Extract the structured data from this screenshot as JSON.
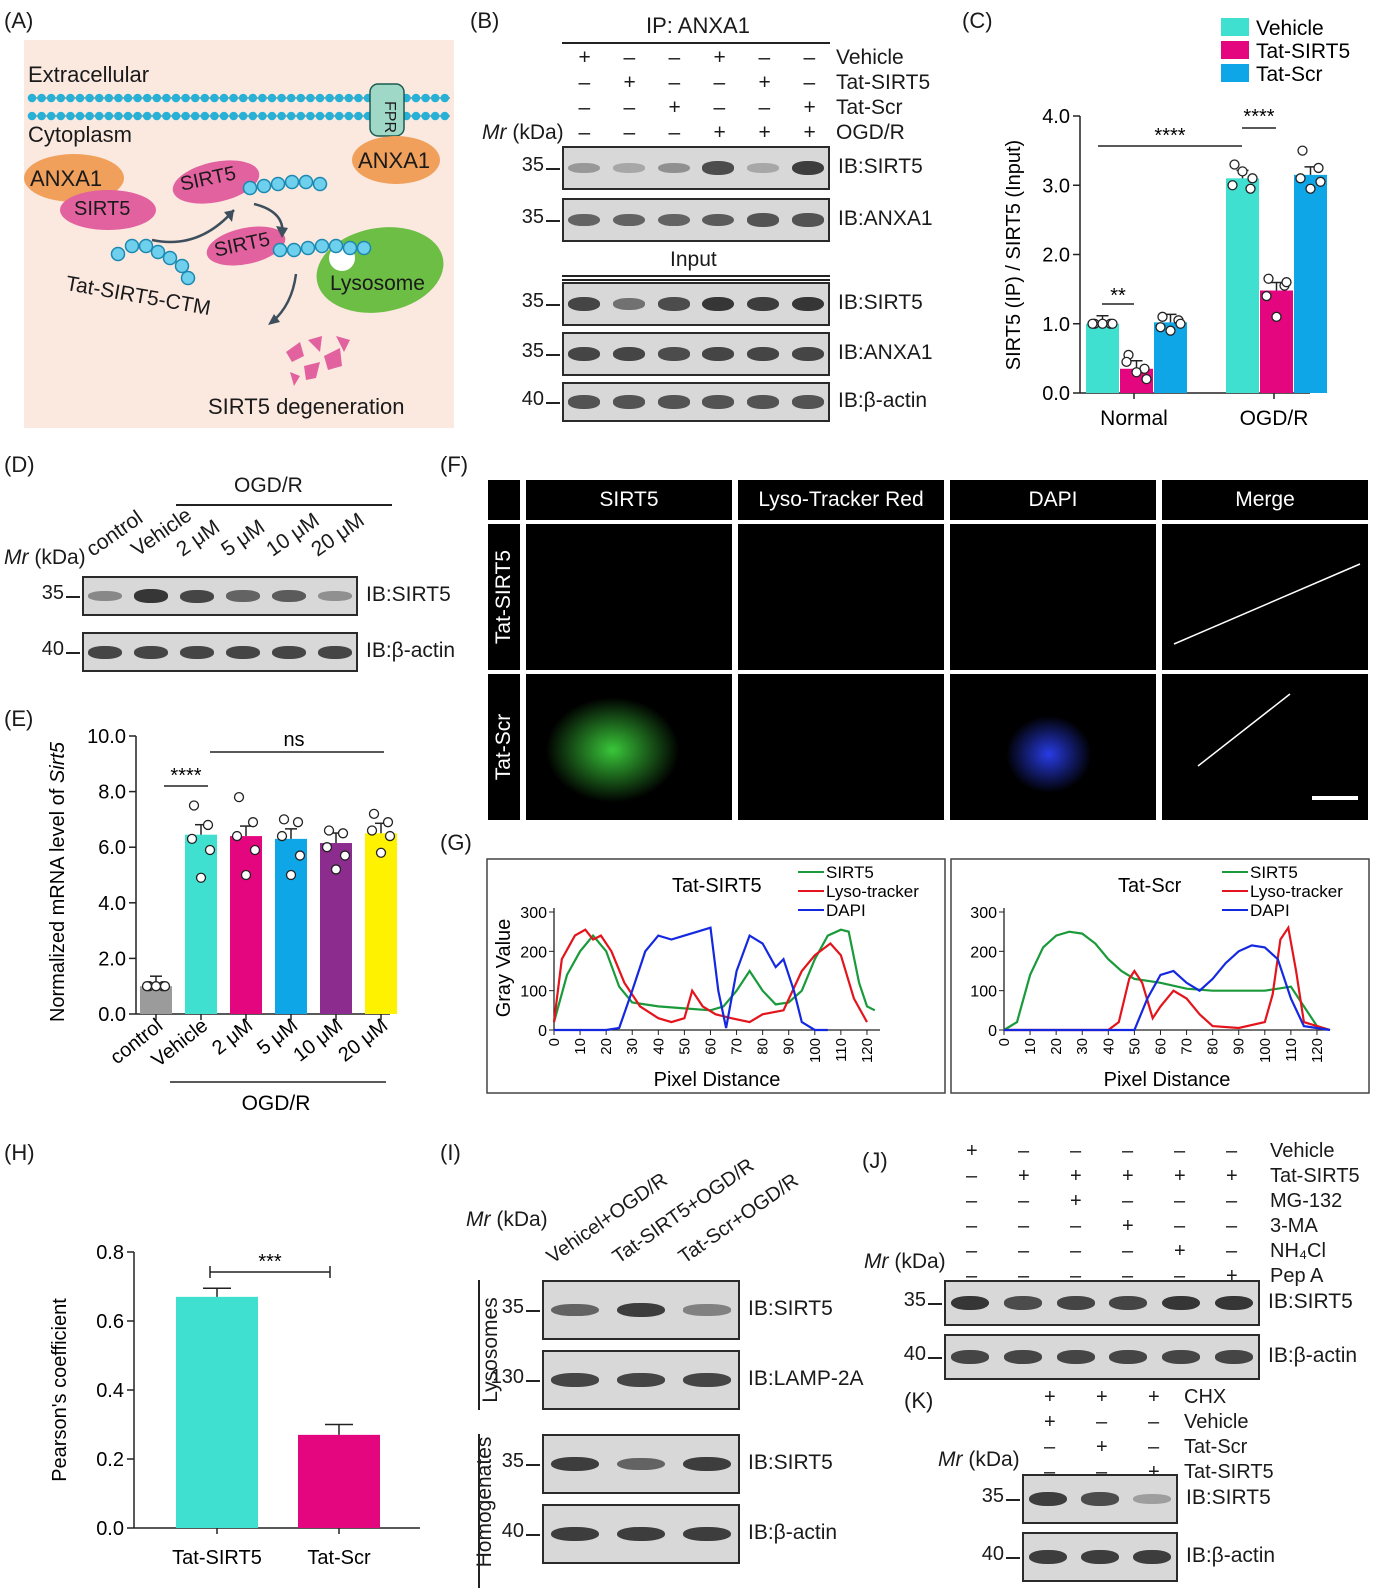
{
  "panel_labels": {
    "A": "(A)",
    "B": "(B)",
    "C": "(C)",
    "D": "(D)",
    "E": "(E)",
    "F": "(F)",
    "G": "(G)",
    "H": "(H)",
    "I": "(I)",
    "J": "(J)",
    "K": "(K)"
  },
  "panel_a": {
    "extracellular": "Extracellular",
    "cytoplasm": "Cytoplasm",
    "fpr": "FPR",
    "anxa1": "ANXA1",
    "sirt5": "SIRT5",
    "tat_ctm": "Tat-SIRT5-CTM",
    "lysosome": "Lysosome",
    "degeneration": "SIRT5 degeneration"
  },
  "mr_prefix": "Mr",
  "mr_suffix": " (kDa)",
  "panel_b": {
    "ip": "IP: ANXA1",
    "input": "Input",
    "conditions": [
      {
        "name": "Vehicle",
        "signs": [
          "+",
          "–",
          "–",
          "+",
          "–",
          "–"
        ]
      },
      {
        "name": "Tat-SIRT5",
        "signs": [
          "–",
          "+",
          "–",
          "–",
          "+",
          "–"
        ]
      },
      {
        "name": "Tat-Scr",
        "signs": [
          "–",
          "–",
          "+",
          "–",
          "–",
          "+"
        ]
      },
      {
        "name": "OGD/R",
        "signs": [
          "–",
          "–",
          "–",
          "+",
          "+",
          "+"
        ]
      }
    ],
    "blots": [
      {
        "label": "IB:SIRT5",
        "mw": "35",
        "intensity": [
          0.25,
          0.15,
          0.3,
          0.75,
          0.15,
          0.85
        ]
      },
      {
        "label": "IB:ANXA1",
        "mw": "35",
        "intensity": [
          0.6,
          0.6,
          0.6,
          0.65,
          0.7,
          0.7
        ]
      },
      {
        "label": "IB:SIRT5",
        "mw": "35",
        "intensity": [
          0.8,
          0.5,
          0.75,
          0.9,
          0.85,
          0.9
        ]
      },
      {
        "label": "IB:ANXA1",
        "mw": "35",
        "intensity": [
          0.8,
          0.8,
          0.75,
          0.8,
          0.8,
          0.8
        ]
      },
      {
        "label": "IB:β-actin",
        "mw": "40",
        "intensity": [
          0.7,
          0.7,
          0.7,
          0.7,
          0.7,
          0.7
        ]
      }
    ]
  },
  "panel_d": {
    "ogdr": "OGD/R",
    "lanes": [
      "control",
      "Vehicle",
      "2 μM",
      "5 μM",
      "10 μM",
      "20 μM"
    ],
    "blots": [
      {
        "label": "IB:SIRT5",
        "mw": "35",
        "intensity": [
          0.35,
          0.9,
          0.8,
          0.6,
          0.65,
          0.3
        ]
      },
      {
        "label": "IB:β-actin",
        "mw": "40",
        "intensity": [
          0.8,
          0.8,
          0.8,
          0.8,
          0.8,
          0.8
        ]
      }
    ]
  },
  "panel_f": {
    "columns": [
      "SIRT5",
      "Lyso-Tracker Red",
      "DAPI",
      "Merge"
    ],
    "rows": [
      "Tat-SIRT5",
      "Tat-Scr"
    ]
  },
  "panel_i": {
    "lanes": [
      "Vehicel+OGD/R",
      "Tat-SIRT5+OGD/R",
      "Tat-Scr+OGD/R"
    ],
    "groups": [
      "Lysosomes",
      "Homogenates"
    ],
    "blots": [
      {
        "label": "IB:SIRT5",
        "mw": "35",
        "intensity": [
          0.6,
          0.85,
          0.4
        ]
      },
      {
        "label": "IB:LAMP-2A",
        "mw": "130",
        "intensity": [
          0.8,
          0.8,
          0.8
        ]
      },
      {
        "label": "IB:SIRT5",
        "mw": "35",
        "intensity": [
          0.85,
          0.6,
          0.85
        ]
      },
      {
        "label": "IB:β-actin",
        "mw": "40",
        "intensity": [
          0.85,
          0.85,
          0.85
        ]
      }
    ]
  },
  "panel_j": {
    "conditions": [
      {
        "name": "Vehicle",
        "signs": [
          "+",
          "–",
          "–",
          "–",
          "–",
          "–"
        ]
      },
      {
        "name": "Tat-SIRT5",
        "signs": [
          "–",
          "+",
          "+",
          "+",
          "+",
          "+"
        ]
      },
      {
        "name": "MG-132",
        "signs": [
          "–",
          "–",
          "+",
          "–",
          "–",
          "–"
        ]
      },
      {
        "name": "3-MA",
        "signs": [
          "–",
          "–",
          "–",
          "+",
          "–",
          "–"
        ]
      },
      {
        "name": "NH₄Cl",
        "signs": [
          "–",
          "–",
          "–",
          "–",
          "+",
          "–"
        ]
      },
      {
        "name": "Pep A",
        "signs": [
          "–",
          "–",
          "–",
          "–",
          "–",
          "+"
        ]
      }
    ],
    "blots": [
      {
        "label": "IB:SIRT5",
        "mw": "35",
        "intensity": [
          0.9,
          0.75,
          0.8,
          0.8,
          0.9,
          0.9
        ]
      },
      {
        "label": "IB:β-actin",
        "mw": "40",
        "intensity": [
          0.8,
          0.8,
          0.8,
          0.8,
          0.8,
          0.8
        ]
      }
    ]
  },
  "panel_k": {
    "conditions": [
      {
        "name": "CHX",
        "signs": [
          "+",
          "+",
          "+"
        ]
      },
      {
        "name": "Vehicle",
        "signs": [
          "+",
          "–",
          "–"
        ]
      },
      {
        "name": "Tat-Scr",
        "signs": [
          "–",
          "+",
          "–"
        ]
      },
      {
        "name": "Tat-SIRT5",
        "signs": [
          "–",
          "–",
          "+"
        ]
      }
    ],
    "blots": [
      {
        "label": "IB:SIRT5",
        "mw": "35",
        "intensity": [
          0.85,
          0.75,
          0.2
        ]
      },
      {
        "label": "IB:β-actin",
        "mw": "40",
        "intensity": [
          0.85,
          0.85,
          0.85
        ]
      }
    ]
  },
  "chart_data": [
    {
      "panel": "C",
      "type": "bar",
      "categories": [
        "Normal",
        "OGD/R"
      ],
      "ylabel": "SIRT5 (IP) / SIRT5 (Input)",
      "ylim": [
        0,
        4
      ],
      "yticks": [
        "0.0",
        "1.0",
        "2.0",
        "3.0",
        "4.0"
      ],
      "legend_placement": "top-right",
      "series": [
        {
          "name": "Vehicle",
          "color": "#40e0d0",
          "values": [
            1.0,
            3.1
          ],
          "points": [
            [
              1.0,
              1.0,
              1.0,
              1.0,
              1.0
            ],
            [
              3.3,
              2.95,
              3.0,
              3.1,
              3.2
            ]
          ]
        },
        {
          "name": "Tat-SIRT5",
          "color": "#e4067e",
          "values": [
            0.35,
            1.48
          ],
          "points": [
            [
              0.55,
              0.35,
              0.45,
              0.2,
              0.3
            ],
            [
              1.65,
              1.55,
              1.4,
              1.6,
              1.1
            ]
          ]
        },
        {
          "name": "Tat-Scr",
          "color": "#0fa6e8",
          "values": [
            1.02,
            3.15
          ],
          "points": [
            [
              1.1,
              1.05,
              0.95,
              1.0,
              0.9
            ],
            [
              3.5,
              3.25,
              3.1,
              3.05,
              2.95
            ]
          ]
        }
      ],
      "significance": [
        {
          "text": "**",
          "between": "Normal: Vehicle vs Tat-SIRT5"
        },
        {
          "text": "****",
          "between": "OGD/R: Vehicle vs Tat-SIRT5"
        },
        {
          "text": "****",
          "between": "Normal Vehicle vs OGD/R Vehicle"
        }
      ]
    },
    {
      "panel": "E",
      "type": "bar",
      "categories": [
        "control",
        "Vehicle",
        "2 μM",
        "5 μM",
        "10 μM",
        "20 μM"
      ],
      "group_label": "OGD/R",
      "ylabel_prefix": "Normalized mRNA level of ",
      "ylabel_gene": "Sirt5",
      "ylim": [
        0,
        10
      ],
      "yticks": [
        "0.0",
        "2.0",
        "4.0",
        "6.0",
        "8.0",
        "10.0"
      ],
      "values": [
        1.0,
        6.45,
        6.4,
        6.3,
        6.15,
        6.5
      ],
      "colors": [
        "#9b9b9b",
        "#40e0d0",
        "#e4067e",
        "#0fa6e8",
        "#8b2c8e",
        "#fff200"
      ],
      "points": [
        [
          1.0,
          1.0,
          1.0,
          1.0,
          1.0
        ],
        [
          7.5,
          6.8,
          6.3,
          5.9,
          4.9
        ],
        [
          7.8,
          6.9,
          6.4,
          5.9,
          5.0
        ],
        [
          7.0,
          6.9,
          6.4,
          5.7,
          5.0
        ],
        [
          6.6,
          6.5,
          6.0,
          5.7,
          5.2
        ],
        [
          7.2,
          6.9,
          6.6,
          6.4,
          5.8
        ]
      ],
      "significance": [
        {
          "text": "****",
          "between": "control vs Vehicle"
        },
        {
          "text": "ns",
          "between": "Vehicle vs 20 μM"
        }
      ]
    },
    {
      "panel": "G-left",
      "type": "line",
      "title": "Tat-SIRT5",
      "xlabel": "Pixel Distance",
      "ylabel": "Gray Value",
      "xticks": [
        0,
        10,
        20,
        30,
        40,
        50,
        60,
        70,
        80,
        90,
        100,
        110,
        120
      ],
      "yticks": [
        0,
        100,
        200,
        300
      ],
      "xlim": [
        0,
        125
      ],
      "ylim": [
        0,
        300
      ],
      "legend_placement": "top-right",
      "series": [
        {
          "name": "SIRT5",
          "color": "#1a9a3a",
          "x": [
            0,
            5,
            10,
            15,
            20,
            25,
            30,
            40,
            50,
            60,
            65,
            70,
            75,
            80,
            85,
            90,
            95,
            100,
            105,
            110,
            113,
            117,
            120,
            123
          ],
          "y": [
            20,
            140,
            200,
            240,
            200,
            110,
            70,
            60,
            55,
            50,
            60,
            100,
            150,
            100,
            65,
            70,
            100,
            180,
            240,
            255,
            250,
            120,
            60,
            50
          ]
        },
        {
          "name": "Lyso-tracker",
          "color": "#e4141c",
          "x": [
            0,
            3,
            8,
            12,
            15,
            18,
            22,
            27,
            33,
            40,
            45,
            50,
            53,
            57,
            62,
            68,
            75,
            80,
            88,
            95,
            100,
            106,
            110,
            115,
            120
          ],
          "y": [
            20,
            180,
            240,
            255,
            230,
            240,
            200,
            120,
            60,
            30,
            20,
            30,
            100,
            60,
            40,
            30,
            20,
            40,
            50,
            150,
            190,
            220,
            190,
            80,
            20
          ]
        },
        {
          "name": "DAPI",
          "color": "#1428e0",
          "x": [
            0,
            20,
            25,
            30,
            35,
            40,
            45,
            50,
            55,
            60,
            63,
            66,
            70,
            75,
            80,
            85,
            88,
            92,
            95,
            100,
            105
          ],
          "y": [
            0,
            0,
            5,
            100,
            200,
            240,
            230,
            240,
            250,
            260,
            100,
            5,
            150,
            240,
            220,
            160,
            180,
            100,
            20,
            0,
            0
          ]
        }
      ]
    },
    {
      "panel": "G-right",
      "type": "line",
      "title": "Tat-Scr",
      "xlabel": "Pixel Distance",
      "ylabel": "",
      "xticks": [
        0,
        10,
        20,
        30,
        40,
        50,
        60,
        70,
        80,
        90,
        100,
        110,
        120
      ],
      "yticks": [
        0,
        100,
        200,
        300
      ],
      "xlim": [
        0,
        125
      ],
      "ylim": [
        0,
        300
      ],
      "legend_placement": "top-right",
      "series": [
        {
          "name": "SIRT5",
          "color": "#1a9a3a",
          "x": [
            0,
            5,
            10,
            15,
            20,
            25,
            30,
            35,
            40,
            45,
            50,
            55,
            60,
            70,
            80,
            90,
            100,
            105,
            110,
            115,
            120,
            125
          ],
          "y": [
            0,
            20,
            140,
            210,
            240,
            250,
            245,
            220,
            180,
            150,
            130,
            125,
            120,
            105,
            100,
            100,
            100,
            105,
            110,
            60,
            10,
            0
          ]
        },
        {
          "name": "Lyso-tracker",
          "color": "#e4141c",
          "x": [
            0,
            40,
            44,
            48,
            50,
            53,
            57,
            60,
            65,
            70,
            75,
            80,
            90,
            100,
            103,
            106,
            109,
            112,
            115,
            125
          ],
          "y": [
            0,
            0,
            20,
            130,
            150,
            120,
            30,
            60,
            100,
            80,
            40,
            10,
            5,
            20,
            90,
            230,
            260,
            150,
            20,
            0
          ]
        },
        {
          "name": "DAPI",
          "color": "#1428e0",
          "x": [
            0,
            50,
            55,
            60,
            65,
            70,
            75,
            80,
            85,
            90,
            95,
            100,
            105,
            110,
            115,
            125
          ],
          "y": [
            0,
            0,
            80,
            140,
            150,
            120,
            100,
            130,
            170,
            200,
            215,
            210,
            180,
            80,
            10,
            0
          ]
        }
      ]
    },
    {
      "panel": "H",
      "type": "bar",
      "categories": [
        "Tat-SIRT5",
        "Tat-Scr"
      ],
      "ylabel": "Pearson's coefficient",
      "ylim": [
        0,
        0.8
      ],
      "yticks": [
        "0.0",
        "0.2",
        "0.4",
        "0.6",
        "0.8"
      ],
      "values": [
        0.67,
        0.27
      ],
      "errors": [
        0.025,
        0.03
      ],
      "colors": [
        "#40e0d0",
        "#e4067e"
      ],
      "significance": [
        {
          "text": "***",
          "between": "Tat-SIRT5 vs Tat-Scr"
        }
      ]
    }
  ]
}
